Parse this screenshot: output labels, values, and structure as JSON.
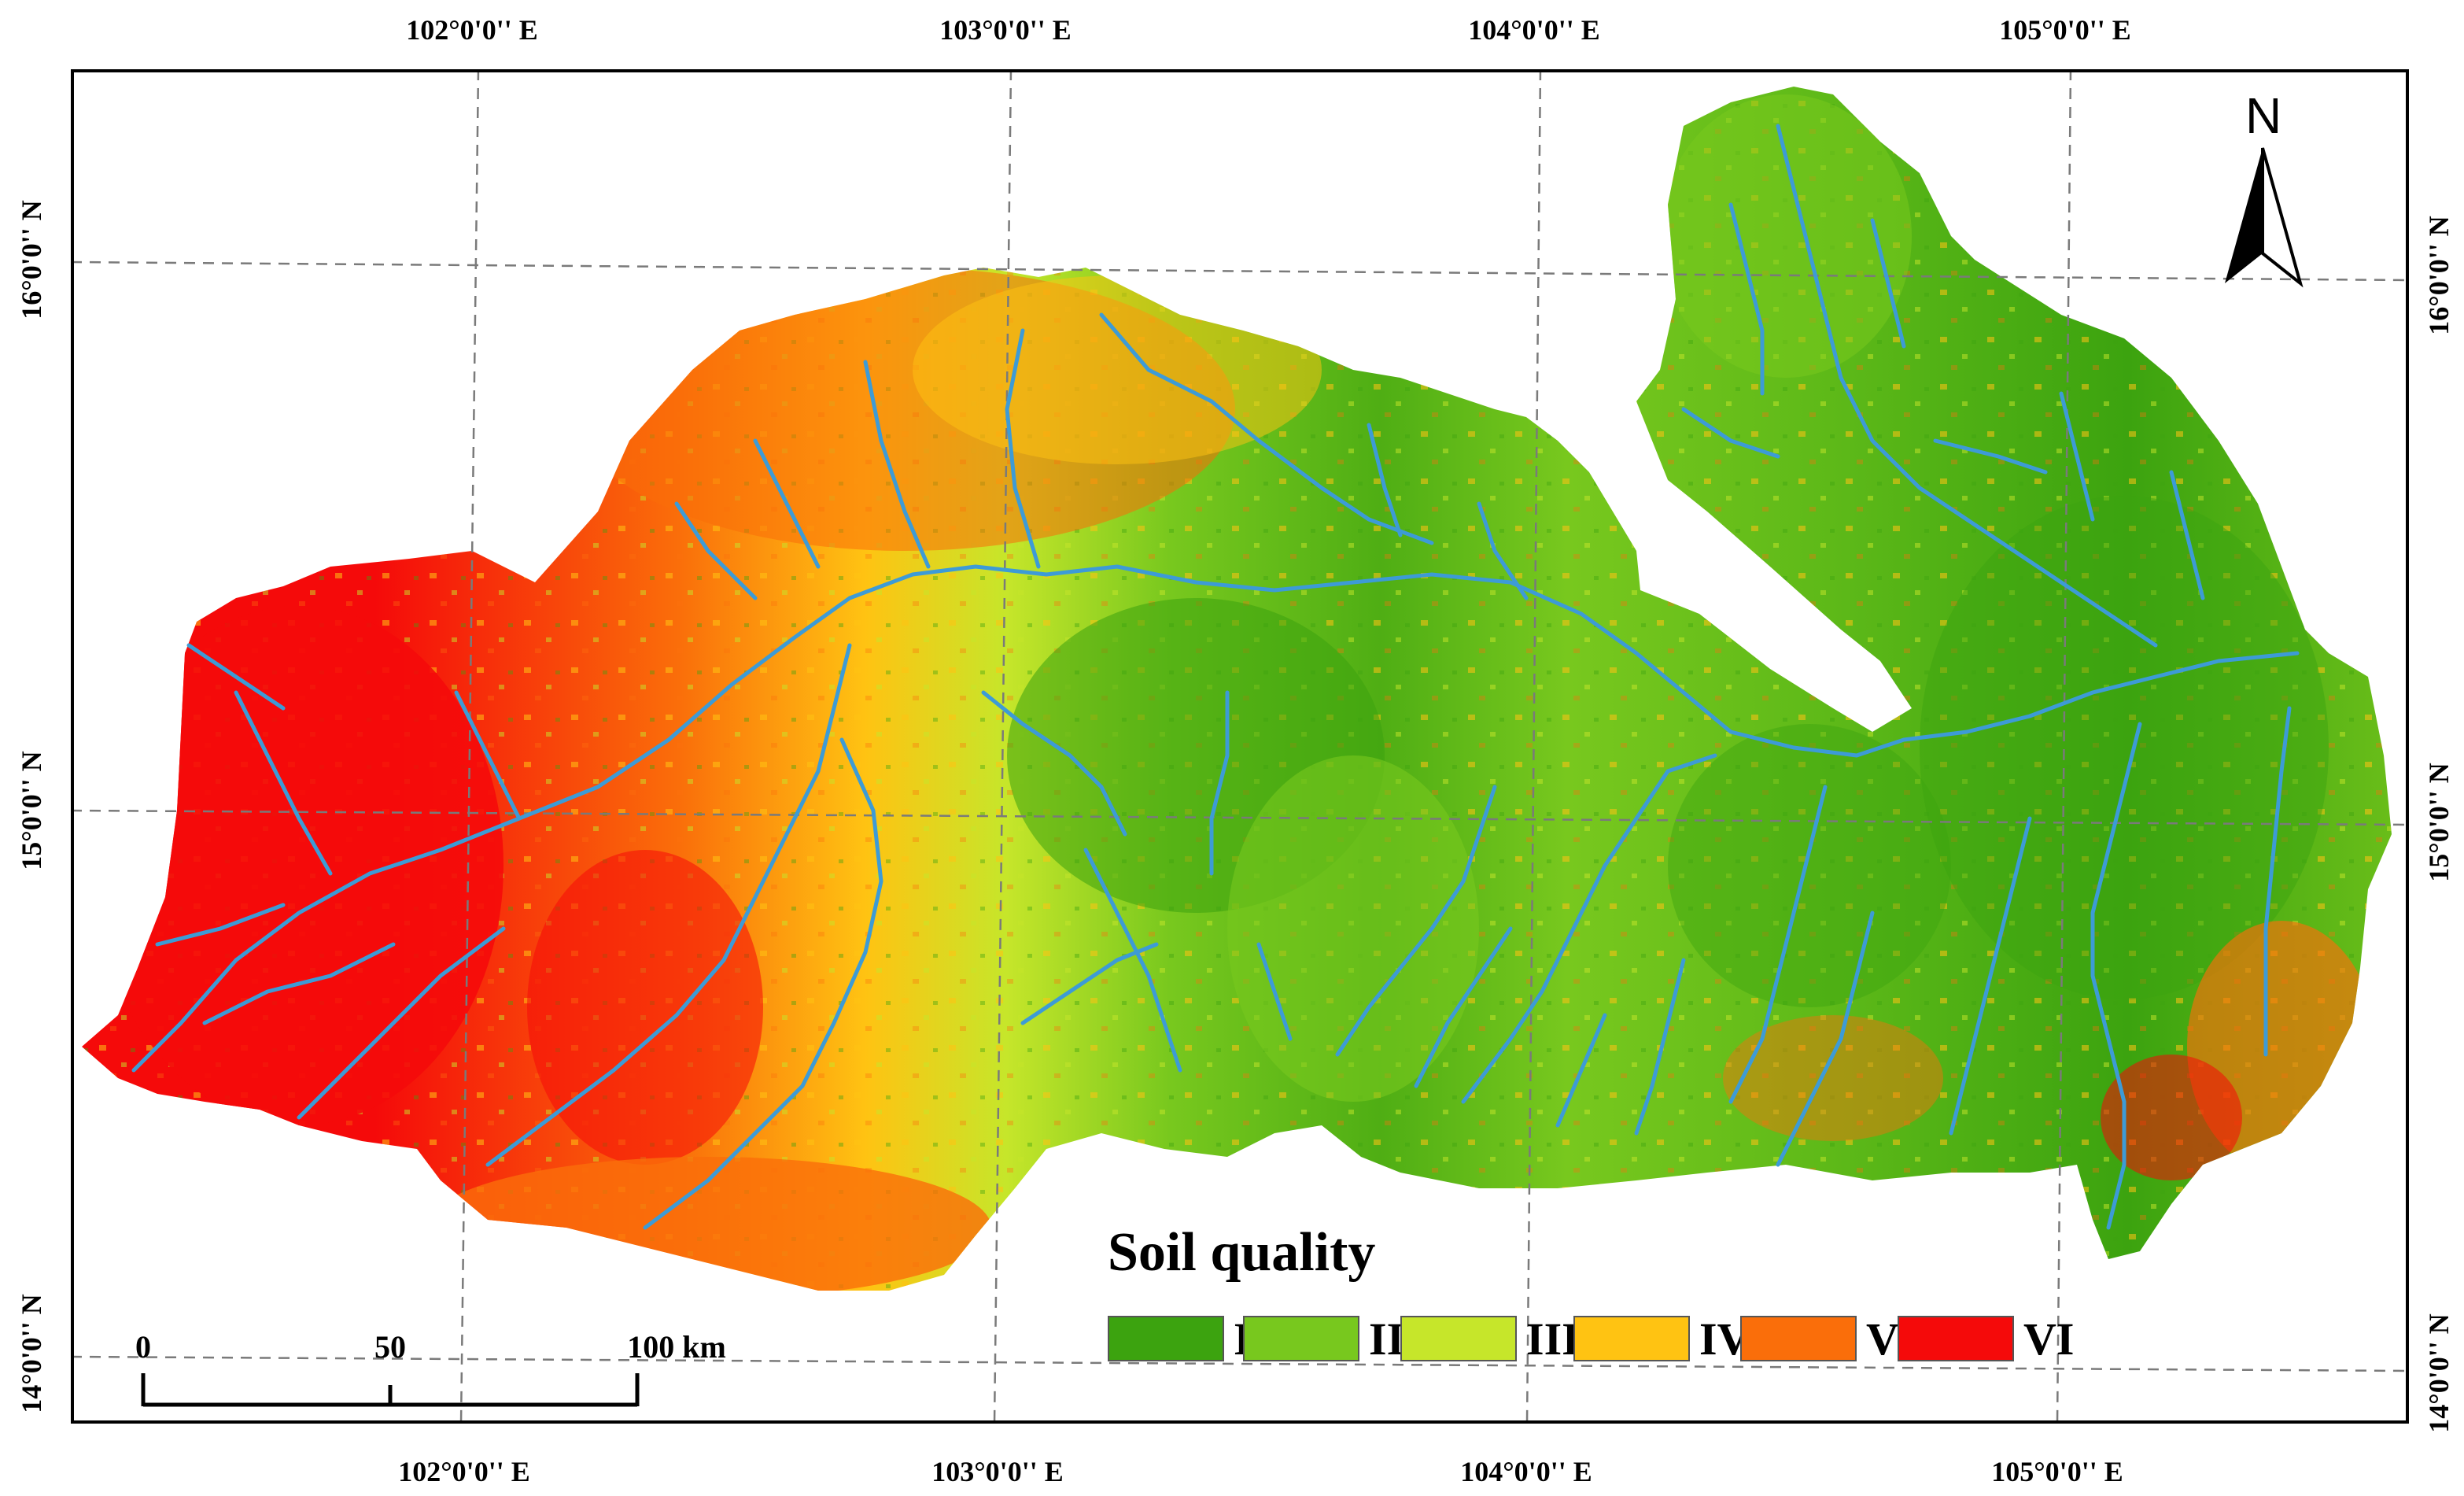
{
  "graticule": {
    "top_labels": [
      "102°0'0'' E",
      "103°0'0'' E",
      "104°0'0'' E",
      "105°0'0'' E"
    ],
    "bottom_labels": [
      "102°0'0'' E",
      "103°0'0'' E",
      "104°0'0'' E",
      "105°0'0'' E"
    ],
    "left_labels": [
      "16°0'0'' N",
      "15°0'0'' N",
      "14°0'0'' N"
    ],
    "right_labels": [
      "16°0'0'' N",
      "15°0'0'' N",
      "14°0'0'' N"
    ]
  },
  "legend": {
    "title": "Soil quality",
    "classes": [
      {
        "label": "I",
        "color": "#3ca30f"
      },
      {
        "label": "II",
        "color": "#78c81e"
      },
      {
        "label": "III",
        "color": "#c6e62a"
      },
      {
        "label": "IV",
        "color": "#ffc312"
      },
      {
        "label": "V",
        "color": "#fa6e0a"
      },
      {
        "label": "VI",
        "color": "#f50a0a"
      }
    ]
  },
  "north_arrow": {
    "label": "N",
    "icon": "north-arrow-icon"
  },
  "scale_bar": {
    "ticks": [
      "0",
      "50",
      "100 km"
    ]
  },
  "colors": {
    "river": "#3d9bd6",
    "grid": "#7a7a7a",
    "frame": "#000000"
  }
}
